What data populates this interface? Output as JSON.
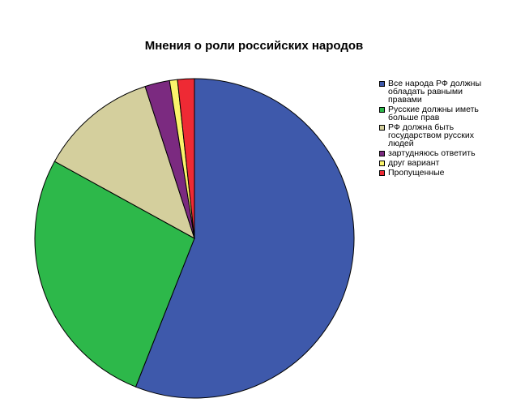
{
  "chart_data": {
    "type": "pie",
    "title": "Мнения о роли российских народов",
    "start_angle_deg": 0,
    "direction": "clockwise",
    "legend_position": "right",
    "slices": [
      {
        "label": "Все народа РФ должны обладать равными правами",
        "value": 56.0,
        "color": "#3e59ab"
      },
      {
        "label": "Русские должны иметь больше прав",
        "value": 27.0,
        "color": "#2db84a"
      },
      {
        "label": "РФ должна быть государством русских людей",
        "value": 12.0,
        "color": "#d4cf9d"
      },
      {
        "label": "зартудняюсь ответить",
        "value": 2.5,
        "color": "#7b2a80"
      },
      {
        "label": "друг вариант",
        "value": 0.8,
        "color": "#fbf36b"
      },
      {
        "label": "Пропущенные",
        "value": 1.7,
        "color": "#ee2a34"
      }
    ]
  },
  "legend_labels": [
    "Все народа РФ должны\nобладать равными\nправами",
    "Русские должны иметь\nбольше прав",
    "РФ должна быть\nгосударством русских\nлюдей",
    "зартудняюсь ответить",
    "друг вариант",
    "Пропущенные"
  ]
}
